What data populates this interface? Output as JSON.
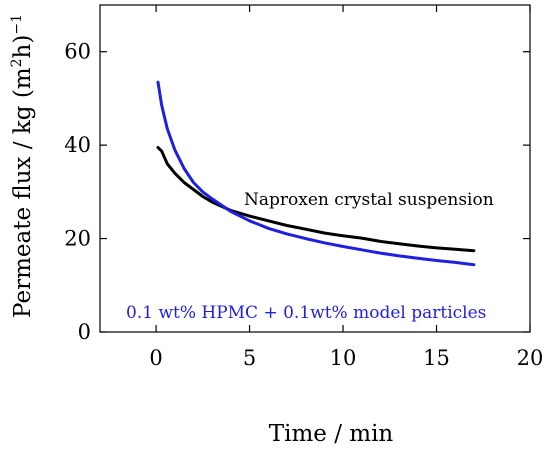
{
  "chart_data": {
    "type": "line",
    "title": "",
    "xlabel": "Time / min",
    "ylabel": "Permeate flux / kg (m",
    "ylabel_sup1": "2",
    "ylabel_mid": "h)",
    "ylabel_sup2": "−1",
    "xlim": [
      -3,
      20
    ],
    "ylim": [
      0,
      70
    ],
    "xticks": [
      0,
      5,
      10,
      15,
      20
    ],
    "yticks": [
      0,
      20,
      40,
      60
    ],
    "grid": false,
    "legend": "none",
    "series": [
      {
        "name": "Naproxen crystal suspension",
        "color": "#000000",
        "x": [
          0.1,
          0.3,
          0.6,
          1,
          1.5,
          2,
          2.5,
          3,
          4,
          5,
          6,
          7,
          8,
          9,
          10,
          11,
          12,
          13,
          14,
          15,
          16,
          17
        ],
        "y": [
          39.5,
          38.7,
          36,
          34,
          32,
          30.5,
          29,
          27.8,
          26,
          24.8,
          23.8,
          22.8,
          22,
          21.2,
          20.6,
          20.1,
          19.4,
          18.9,
          18.4,
          18,
          17.7,
          17.4
        ]
      },
      {
        "name": "0.1 wt% HPMC + 0.1wt% model particles",
        "color": "#1f1fe0",
        "x": [
          0.1,
          0.3,
          0.6,
          1,
          1.5,
          2,
          2.5,
          3,
          4,
          5,
          6,
          7,
          8,
          9,
          10,
          11,
          12,
          13,
          14,
          15,
          16,
          17
        ],
        "y": [
          53.5,
          48.5,
          43.5,
          39,
          35,
          32,
          30,
          28.5,
          25.8,
          23.8,
          22.2,
          21,
          20,
          19.1,
          18.3,
          17.6,
          16.9,
          16.3,
          15.8,
          15.3,
          14.9,
          14.4
        ]
      }
    ],
    "annotations": [
      {
        "text": "Naproxen crystal suspension",
        "color": "#000000"
      },
      {
        "text": "0.1 wt% HPMC + 0.1wt% model particles",
        "color": "#1f1fe0"
      }
    ]
  }
}
